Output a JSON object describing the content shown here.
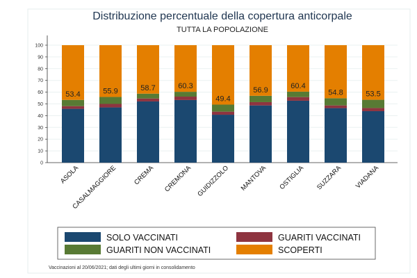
{
  "chart_data": {
    "type": "bar",
    "stacked": true,
    "title": "Distribuzione percentuale della copertura anticorpale",
    "subtitle": "TUTTA LA POPOLAZIONE",
    "xlabel": "",
    "ylabel": "",
    "ylim": [
      0,
      100
    ],
    "yticks": [
      0,
      10,
      20,
      30,
      40,
      50,
      60,
      70,
      80,
      90,
      100
    ],
    "grid": true,
    "legend_position": "bottom",
    "categories": [
      "ASOLA",
      "CASALMAGGIORE",
      "CREMA",
      "CREMONA",
      "GUIDIZZOLO",
      "MANTOVA",
      "OSTIGLIA",
      "SUZZARA",
      "VIADANA"
    ],
    "series": [
      {
        "name": "SOLO VACCINATI",
        "color": "#1b4870",
        "values": [
          45.8,
          47.0,
          52.1,
          53.3,
          40.8,
          48.7,
          52.7,
          46.4,
          43.8
        ]
      },
      {
        "name": "GUARITI VACCINATI",
        "color": "#8e3440",
        "values": [
          2.3,
          3.0,
          2.5,
          2.9,
          2.6,
          2.8,
          3.1,
          2.3,
          2.7
        ]
      },
      {
        "name": "GUARITI NON VACCINATI",
        "color": "#587a34",
        "values": [
          5.3,
          5.9,
          4.1,
          4.1,
          6.0,
          5.4,
          4.6,
          6.1,
          7.0
        ]
      },
      {
        "name": "SCOPERTI",
        "color": "#e47f00",
        "values": [
          46.6,
          44.1,
          41.3,
          39.7,
          50.6,
          43.1,
          39.6,
          45.2,
          46.5
        ]
      }
    ],
    "data_labels": [
      "53.4",
      "55.9",
      "58.7",
      "60.3",
      "49.4",
      "56.9",
      "60.4",
      "54.8",
      "53.5"
    ],
    "footnote": "Vaccinazioni al 20/06/2021; dati degli ultimi giorni in consolidamento"
  }
}
